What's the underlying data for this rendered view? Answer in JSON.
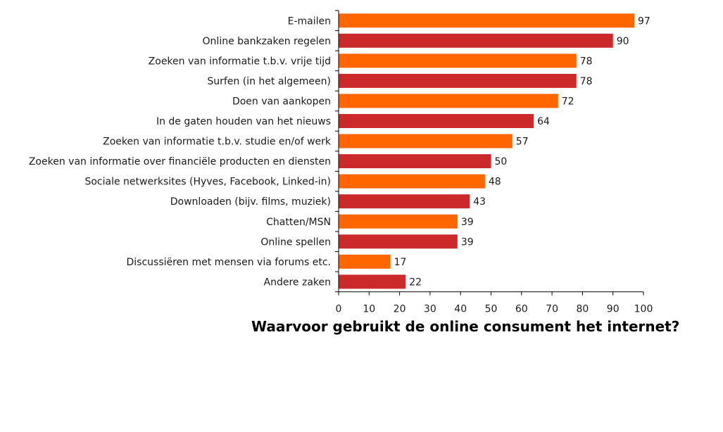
{
  "chart_data": {
    "type": "bar",
    "orientation": "horizontal",
    "title": "Waarvoor gebruikt de online consument het internet?",
    "categories": [
      "E-mailen",
      "Online bankzaken regelen",
      "Zoeken van informatie t.b.v. vrije tijd",
      "Surfen (in het algemeen)",
      "Doen van aankopen",
      "In de gaten houden van het nieuws",
      "Zoeken van informatie t.b.v. studie en/of werk",
      "Zoeken van informatie over financiële producten en diensten",
      "Sociale netwerksites (Hyves, Facebook, Linked-in)",
      "Downloaden (bijv. films, muziek)",
      "Chatten/MSN",
      "Online spellen",
      "Discussiëren met mensen via forums etc.",
      "Andere zaken"
    ],
    "values": [
      97,
      90,
      78,
      78,
      72,
      64,
      57,
      50,
      48,
      43,
      39,
      39,
      17,
      22
    ],
    "bar_colors": [
      "#ff6600",
      "#cc2a2a",
      "#ff6600",
      "#cc2a2a",
      "#ff6600",
      "#cc2a2a",
      "#ff6600",
      "#cc2a2a",
      "#ff6600",
      "#cc2a2a",
      "#ff6600",
      "#cc2a2a",
      "#ff6600",
      "#cc2a2a"
    ],
    "xlim": [
      0,
      100
    ],
    "xticks": [
      0,
      10,
      20,
      30,
      40,
      50,
      60,
      70,
      80,
      90,
      100
    ],
    "grid": false,
    "legend": "none"
  }
}
